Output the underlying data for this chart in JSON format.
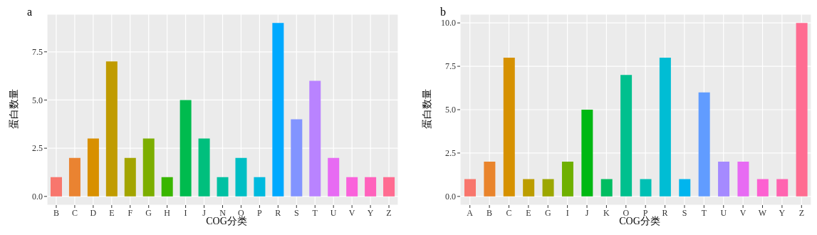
{
  "chart_data": [
    {
      "type": "bar",
      "title": "a",
      "xlabel": "COG分类",
      "ylabel": "蛋白数量",
      "categories": [
        "B",
        "C",
        "D",
        "E",
        "F",
        "G",
        "H",
        "I",
        "J",
        "N",
        "O",
        "P",
        "R",
        "S",
        "T",
        "U",
        "V",
        "Y",
        "Z"
      ],
      "values": [
        1,
        2,
        3,
        7,
        2,
        3,
        1,
        5,
        3,
        1,
        2,
        1,
        9,
        4,
        6,
        2,
        1,
        1,
        1
      ],
      "colors": [
        "#f8766d",
        "#ea8331",
        "#d89000",
        "#c09b00",
        "#a3a500",
        "#7cae00",
        "#39b600",
        "#00bb4e",
        "#00bf7d",
        "#00c1a3",
        "#00bfc4",
        "#00bade",
        "#00a9ff",
        "#8294ff",
        "#b983ff",
        "#e76bf3",
        "#fa62db",
        "#ff62bc",
        "#ff6c91"
      ],
      "ylim": [
        -0.45,
        9.45
      ],
      "yticks": [
        {
          "value": 0,
          "label": "0.0"
        },
        {
          "value": 2.5,
          "label": "2.5"
        },
        {
          "value": 5,
          "label": "5.0"
        },
        {
          "value": 7.5,
          "label": "7.5"
        }
      ],
      "grid": true
    },
    {
      "type": "bar",
      "title": "b",
      "xlabel": "COG分类",
      "ylabel": "蛋白数量",
      "categories": [
        "A",
        "B",
        "C",
        "E",
        "G",
        "I",
        "J",
        "K",
        "O",
        "P",
        "R",
        "S",
        "T",
        "U",
        "V",
        "W",
        "Y",
        "Z"
      ],
      "values": [
        1,
        2,
        8,
        1,
        1,
        2,
        5,
        1,
        7,
        1,
        8,
        1,
        6,
        2,
        2,
        1,
        1,
        10
      ],
      "colors": [
        "#f8766d",
        "#e9842c",
        "#d69100",
        "#bc9d00",
        "#9ca700",
        "#6fb000",
        "#00b813",
        "#00bd61",
        "#00c08e",
        "#00c0b4",
        "#00bdd4",
        "#00b5ee",
        "#619cff",
        "#a58aff",
        "#e76bf3",
        "#fd61d1",
        "#ff64b0",
        "#ff6c91"
      ],
      "ylim": [
        -0.5,
        10.5
      ],
      "yticks": [
        {
          "value": 0,
          "label": "0.0"
        },
        {
          "value": 2.5,
          "label": "2.5"
        },
        {
          "value": 5,
          "label": "5.0"
        },
        {
          "value": 7.5,
          "label": "7.5"
        },
        {
          "value": 10,
          "label": "10.0"
        }
      ],
      "grid": true
    }
  ]
}
